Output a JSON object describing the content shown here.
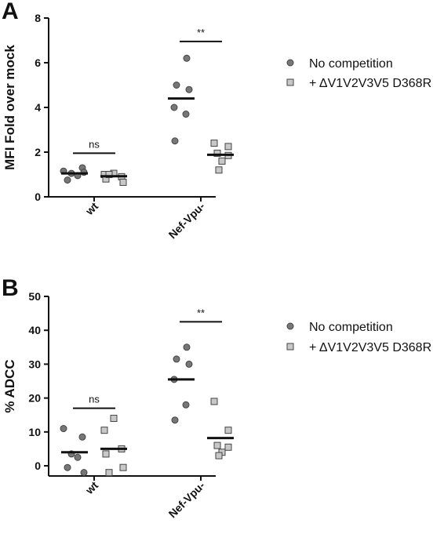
{
  "chart_data": [
    {
      "type": "scatter",
      "panel_label": "A",
      "ylabel": "MFI Fold over mock",
      "ylim": [
        0,
        8
      ],
      "yticks": [
        0,
        2,
        4,
        6,
        8
      ],
      "categories": [
        "wt",
        "Nef-Vpu-"
      ],
      "series": [
        {
          "name": "No competition",
          "marker": "circle",
          "color": "#777777",
          "groups": [
            [
              1.15,
              1.3,
              1.05,
              0.95,
              0.75,
              1.1
            ],
            [
              6.2,
              5.0,
              4.8,
              4.0,
              3.7,
              2.5
            ]
          ],
          "means": [
            1.05,
            4.4
          ]
        },
        {
          "name": "+ ΔV1V2V3V5 D368R",
          "marker": "square",
          "color": "#c8c8c8",
          "groups": [
            [
              1.05,
              1.0,
              0.9,
              0.8,
              0.65,
              1.0
            ],
            [
              2.4,
              2.25,
              1.95,
              1.85,
              1.6,
              1.2
            ]
          ],
          "means": [
            0.92,
            1.88
          ]
        }
      ],
      "annotations": [
        {
          "text": "ns",
          "category_index": 0,
          "y": 1.95
        },
        {
          "text": "**",
          "category_index": 1,
          "y": 6.95
        }
      ],
      "legend": {
        "position": "right"
      }
    },
    {
      "type": "scatter",
      "panel_label": "B",
      "ylabel": "% ADCC",
      "ylim": [
        -3,
        50
      ],
      "yticks": [
        0,
        10,
        20,
        30,
        40,
        50
      ],
      "categories": [
        "wt",
        "Nef-Vpu-"
      ],
      "series": [
        {
          "name": "No competition",
          "marker": "circle",
          "color": "#777777",
          "groups": [
            [
              11.0,
              8.5,
              3.5,
              2.5,
              -0.5,
              -2.0
            ],
            [
              35.0,
              31.5,
              30.0,
              25.5,
              18.0,
              13.5
            ]
          ],
          "means": [
            4.0,
            25.5
          ]
        },
        {
          "name": "+ ΔV1V2V3V5 D368R",
          "marker": "square",
          "color": "#c8c8c8",
          "groups": [
            [
              14.0,
              10.5,
              5.0,
              3.5,
              -0.5,
              -2.0
            ],
            [
              19.0,
              10.5,
              6.0,
              5.5,
              4.0,
              3.0
            ]
          ],
          "means": [
            5.0,
            8.2
          ]
        }
      ],
      "annotations": [
        {
          "text": "ns",
          "category_index": 0,
          "y": 17
        },
        {
          "text": "**",
          "category_index": 1,
          "y": 42.5
        }
      ],
      "legend": {
        "position": "right"
      }
    }
  ]
}
